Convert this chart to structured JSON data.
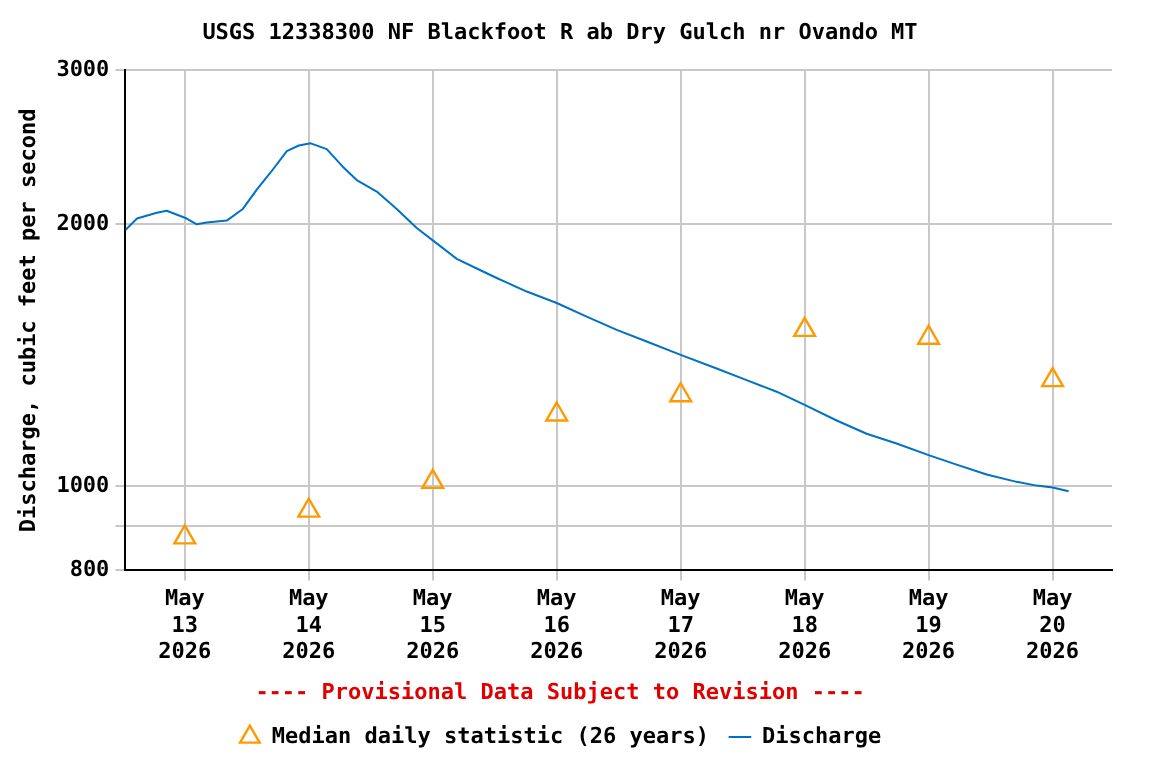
{
  "chart_data": {
    "type": "line",
    "title": "USGS 12338300 NF Blackfoot R ab Dry Gulch nr Ovando MT",
    "ylabel": "Discharge, cubic feet per second",
    "annotations": [
      "---- Provisional Data Subject to Revision ----"
    ],
    "log": "y",
    "grid": true,
    "legend": "bottom",
    "xlim": [
      "2026-05-12T12:30",
      "2026-05-20T11:30"
    ],
    "xticks": [
      {
        "value": "2026-05-13",
        "label": "May\n13\n2026"
      },
      {
        "value": "2026-05-14",
        "label": "May\n14\n2026"
      },
      {
        "value": "2026-05-15",
        "label": "May\n15\n2026"
      },
      {
        "value": "2026-05-16",
        "label": "May\n16\n2026"
      },
      {
        "value": "2026-05-17",
        "label": "May\n17\n2026"
      },
      {
        "value": "2026-05-18",
        "label": "May\n18\n2026"
      },
      {
        "value": "2026-05-19",
        "label": "May\n19\n2026"
      },
      {
        "value": "2026-05-20",
        "label": "May\n20\n2026"
      }
    ],
    "ylim": [
      800,
      3000
    ],
    "yticks": [
      800,
      {
        "value": 900,
        "label": null
      },
      1000,
      2000,
      3000
    ],
    "series": [
      {
        "name": "Median daily statistic (26 years)",
        "type": "scatter",
        "marker": "triangle",
        "color": "#ff9900",
        "x": [
          "2026-05-13",
          "2026-05-14",
          "2026-05-15",
          "2026-05-16",
          "2026-05-17",
          "2026-05-18",
          "2026-05-19",
          "2026-05-20"
        ],
        "values": [
          873,
          937,
          1011,
          1208,
          1271,
          1511,
          1480,
          1323
        ]
      },
      {
        "name": "Discharge",
        "type": "line",
        "marker": "none",
        "color": "#0072c6",
        "x": [
          "2026-05-12T12:30",
          "2026-05-12T14:45",
          "2026-05-12T18:35",
          "2026-05-12T20:30",
          "2026-05-13T00:23",
          "2026-05-13T02:19",
          "2026-05-13T04:15",
          "2026-05-13T08:08",
          "2026-05-13T11:14",
          "2026-05-13T13:56",
          "2026-05-13T16:39",
          "2026-05-13T19:45",
          "2026-05-13T22:04",
          "2026-05-14T00:23",
          "2026-05-14T03:29",
          "2026-05-14T06:35",
          "2026-05-14T09:17",
          "2026-05-14T13:10",
          "2026-05-14T17:02",
          "2026-05-14T20:54",
          "2026-05-15T00:46",
          "2026-05-15T04:39",
          "2026-05-15T08:31",
          "2026-05-15T12:23",
          "2026-05-15T18:12",
          "2026-05-16T00:00",
          "2026-05-16T05:48",
          "2026-05-16T11:37",
          "2026-05-16T17:25",
          "2026-05-17T00:00",
          "2026-05-17T06:58",
          "2026-05-17T12:46",
          "2026-05-17T18:35",
          "2026-05-18T00:00",
          "2026-05-18T06:12",
          "2026-05-18T12:00",
          "2026-05-18T17:48",
          "2026-05-19T00:00",
          "2026-05-19T05:25",
          "2026-05-19T11:14",
          "2026-05-19T17:02",
          "2026-05-19T20:54",
          "2026-05-20T00:00",
          "2026-05-20T03:06"
        ],
        "values": [
          1967,
          2028,
          2059,
          2070,
          2028,
          1997,
          2007,
          2017,
          2080,
          2189,
          2292,
          2424,
          2460,
          2474,
          2436,
          2326,
          2245,
          2178,
          2080,
          1978,
          1899,
          1823,
          1777,
          1733,
          1672,
          1622,
          1565,
          1511,
          1465,
          1414,
          1364,
          1323,
          1283,
          1239,
          1189,
          1148,
          1119,
          1085,
          1058,
          1031,
          1011,
          1001,
          996,
          986
        ]
      }
    ]
  }
}
